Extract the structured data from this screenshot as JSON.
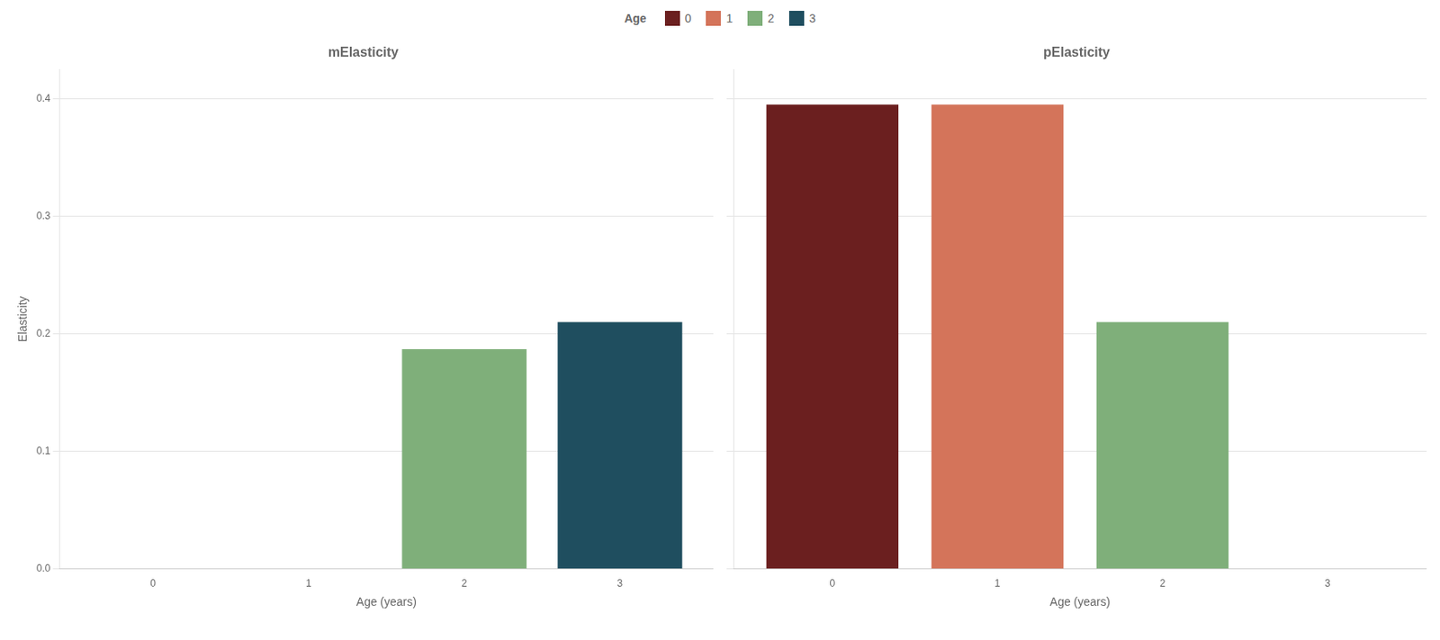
{
  "chart_data": [
    {
      "type": "bar",
      "title": "mElasticity",
      "xlabel": "Age (years)",
      "ylabel": "Elasticity",
      "xlim": [
        -0.6,
        3.6
      ],
      "xticks": [
        0,
        1,
        2,
        3
      ],
      "ylim": [
        0,
        0.425
      ],
      "yticks": [
        {
          "value": 0.0,
          "label": "0.0"
        },
        0.1,
        0.2,
        0.3,
        0.4
      ],
      "grid": "y",
      "legend": "top",
      "legend_title": "Age",
      "series": [
        {
          "name": "0",
          "color": "#6B1F1F",
          "x": [],
          "values": []
        },
        {
          "name": "1",
          "color": "#D4745A",
          "x": [],
          "values": []
        },
        {
          "name": "2",
          "color": "#7FAF7A",
          "x": [
            2
          ],
          "values": [
            0.187
          ]
        },
        {
          "name": "3",
          "color": "#1F4E5F",
          "x": [
            3
          ],
          "values": [
            0.21
          ]
        }
      ]
    },
    {
      "type": "bar",
      "title": "pElasticity",
      "xlabel": "Age (years)",
      "xlim": [
        -0.6,
        3.6
      ],
      "xticks": [
        0,
        1,
        2,
        3
      ],
      "ylim": [
        0,
        0.425
      ],
      "yticks": [
        {
          "value": 0.0,
          "label": "0.0"
        },
        0.1,
        0.2,
        0.3,
        0.4
      ],
      "grid": "y",
      "tick_labels": "x",
      "series": [
        {
          "name": "0",
          "color": "#6B1F1F",
          "x": [
            0
          ],
          "values": [
            0.395
          ]
        },
        {
          "name": "1",
          "color": "#D4745A",
          "x": [
            1
          ],
          "values": [
            0.395
          ]
        },
        {
          "name": "2",
          "color": "#7FAF7A",
          "x": [
            2
          ],
          "values": [
            0.21
          ]
        },
        {
          "name": "3",
          "color": "#1F4E5F",
          "x": [],
          "values": []
        }
      ]
    }
  ]
}
